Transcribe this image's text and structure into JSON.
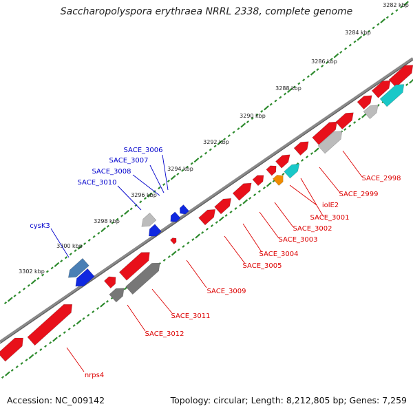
{
  "title": "Saccharopolyspora erythraea NRRL 2338, complete genome",
  "footer": {
    "accession": "Accession: NC_009142",
    "summary": "Topology: circular; Length: 8,212,805 bp; Genes: 7,259"
  },
  "colors": {
    "background": "#ffffff",
    "backbone": "#8a8a8a",
    "tick": "#2e8b2e",
    "forward_label": "#0000cc",
    "reverse_label": "#dd0000",
    "red": "#e8101a",
    "blue": "#1028e0",
    "steelblue": "#4a7fb5",
    "gray_dark": "#777777",
    "gray_light": "#bcbcbc",
    "cyan": "#19c8c8",
    "orange": "#f08c00"
  },
  "ticks": [
    {
      "label": "3282 kbp"
    },
    {
      "label": "3284 kbp"
    },
    {
      "label": "3286 kbp"
    },
    {
      "label": "3288 kbp"
    },
    {
      "label": "3290 kbp"
    },
    {
      "label": "3292 kbp"
    },
    {
      "label": "3294 kbp"
    },
    {
      "label": "3296 kbp"
    },
    {
      "label": "3298 kbp"
    },
    {
      "label": "3300 kbp"
    },
    {
      "label": "3302 kbp"
    }
  ],
  "forward_labels": [
    "SACE_3006",
    "SACE_3007",
    "SACE_3008",
    "SACE_3010",
    "cysK3"
  ],
  "reverse_labels": [
    "SACE_2998",
    "SACE_2999",
    "SACE_3001",
    "iolE2",
    "SACE_3002",
    "SACE_3003",
    "SACE_3004",
    "SACE_3005",
    "SACE_3009",
    "SACE_3011",
    "SACE_3012",
    "nrps4"
  ]
}
